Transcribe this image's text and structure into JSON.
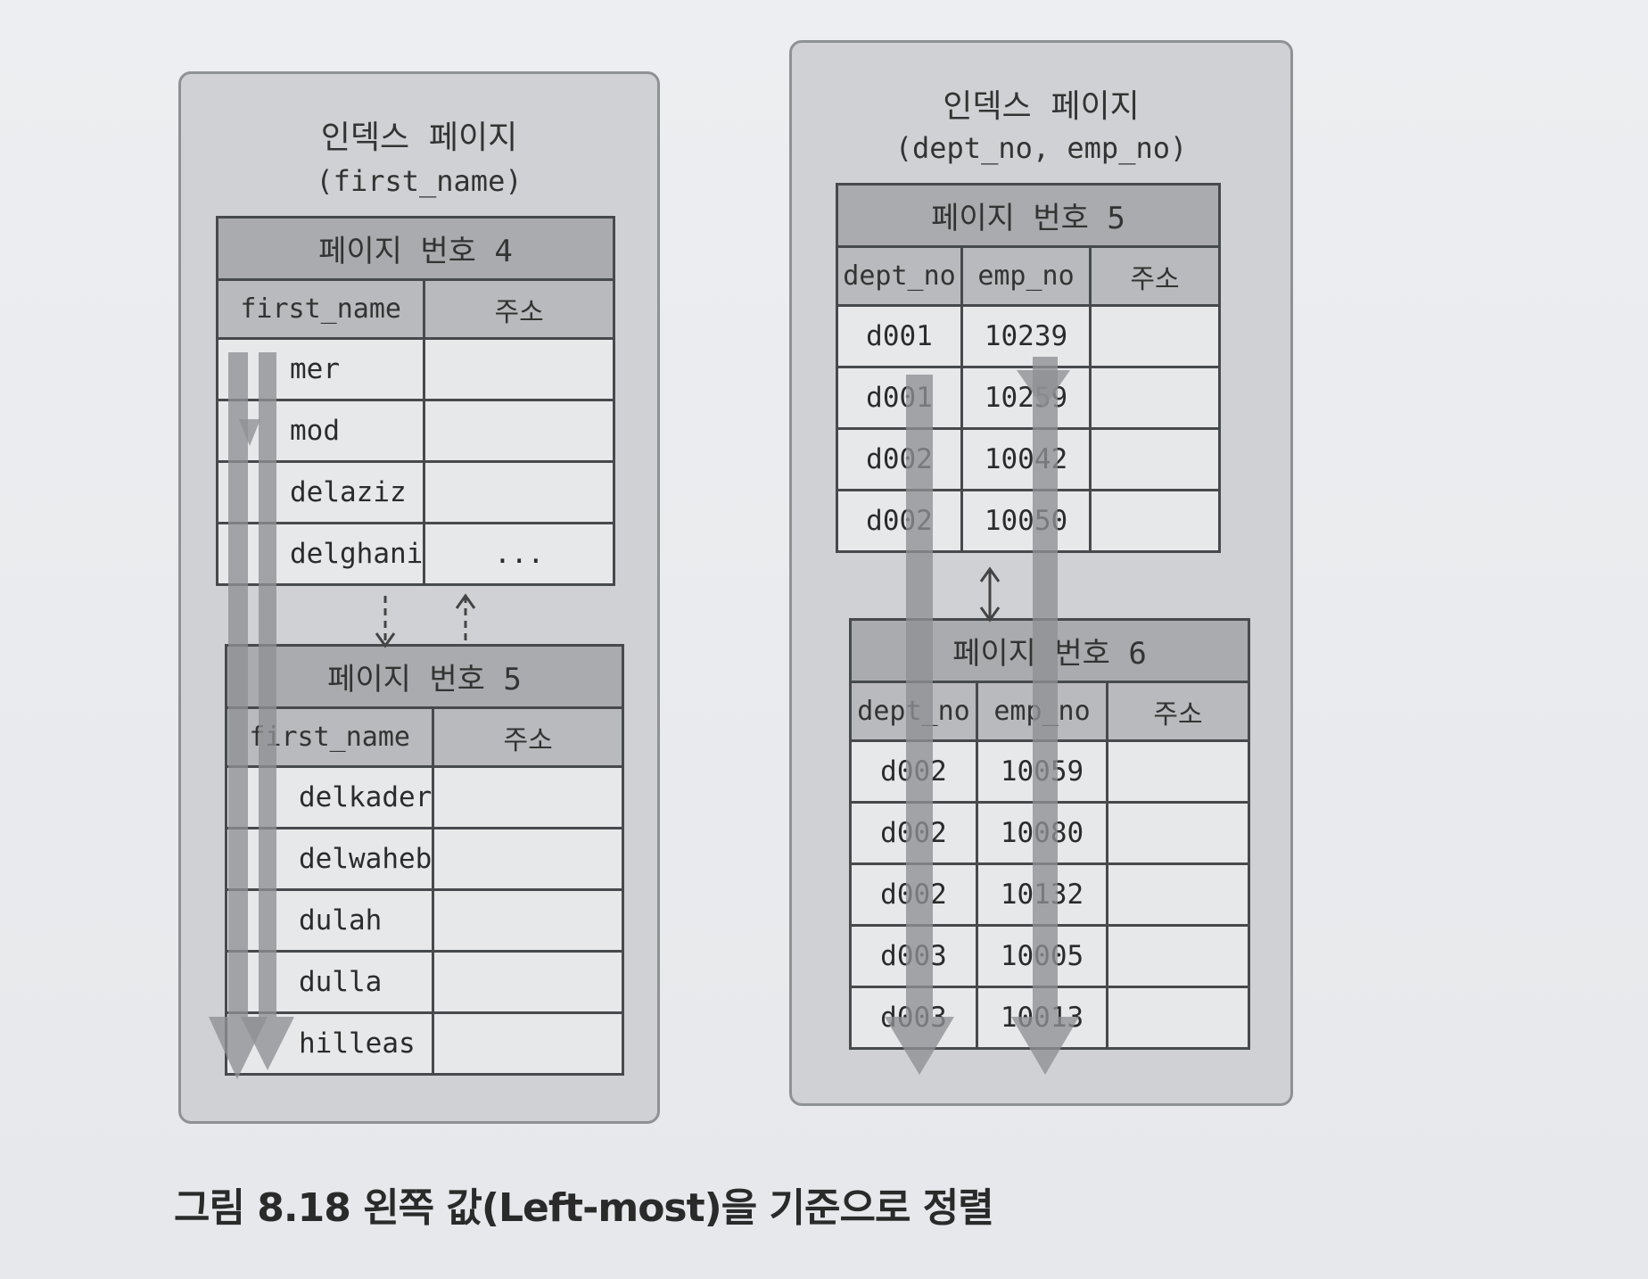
{
  "caption": "그림 8.18 왼쪽 값(Left-most)을 기준으로 정렬",
  "left_panel": {
    "title_line1": "인덱스 페이지",
    "title_line2": "(first_name)",
    "page4": {
      "header": "페이지 번호 4",
      "col1": "first_name",
      "col2": "주소",
      "rows": [
        "mer",
        "mod",
        "delaziz",
        "delghani"
      ],
      "ellipsis": "..."
    },
    "page5": {
      "header": "페이지 번호 5",
      "col1": "first_name",
      "col2": "주소",
      "rows": [
        "delkader",
        "delwaheb",
        "dulah",
        "dulla",
        "hilleas"
      ]
    }
  },
  "right_panel": {
    "title_line1": "인덱스 페이지",
    "title_line2": "(dept_no, emp_no)",
    "page5": {
      "header": "페이지 번호 5",
      "col1": "dept_no",
      "col2": "emp_no",
      "col3": "주소",
      "rows": [
        {
          "dept_no": "d001",
          "emp_no": "10239"
        },
        {
          "dept_no": "d001",
          "emp_no": "10259"
        },
        {
          "dept_no": "d002",
          "emp_no": "10042"
        },
        {
          "dept_no": "d002",
          "emp_no": "10050"
        }
      ]
    },
    "page6": {
      "header": "페이지 번호 6",
      "col1": "dept_no",
      "col2": "emp_no",
      "col3": "주소",
      "rows": [
        {
          "dept_no": "d002",
          "emp_no": "10059"
        },
        {
          "dept_no": "d002",
          "emp_no": "10080"
        },
        {
          "dept_no": "d002",
          "emp_no": "10132"
        },
        {
          "dept_no": "d003",
          "emp_no": "10005"
        },
        {
          "dept_no": "d003",
          "emp_no": "10013"
        }
      ]
    }
  },
  "colors": {
    "panel_bg": "#cfd1d4",
    "header_bg": "#a9abae",
    "cell_bg": "#e7e8ea",
    "arrow": "#8e9093"
  }
}
